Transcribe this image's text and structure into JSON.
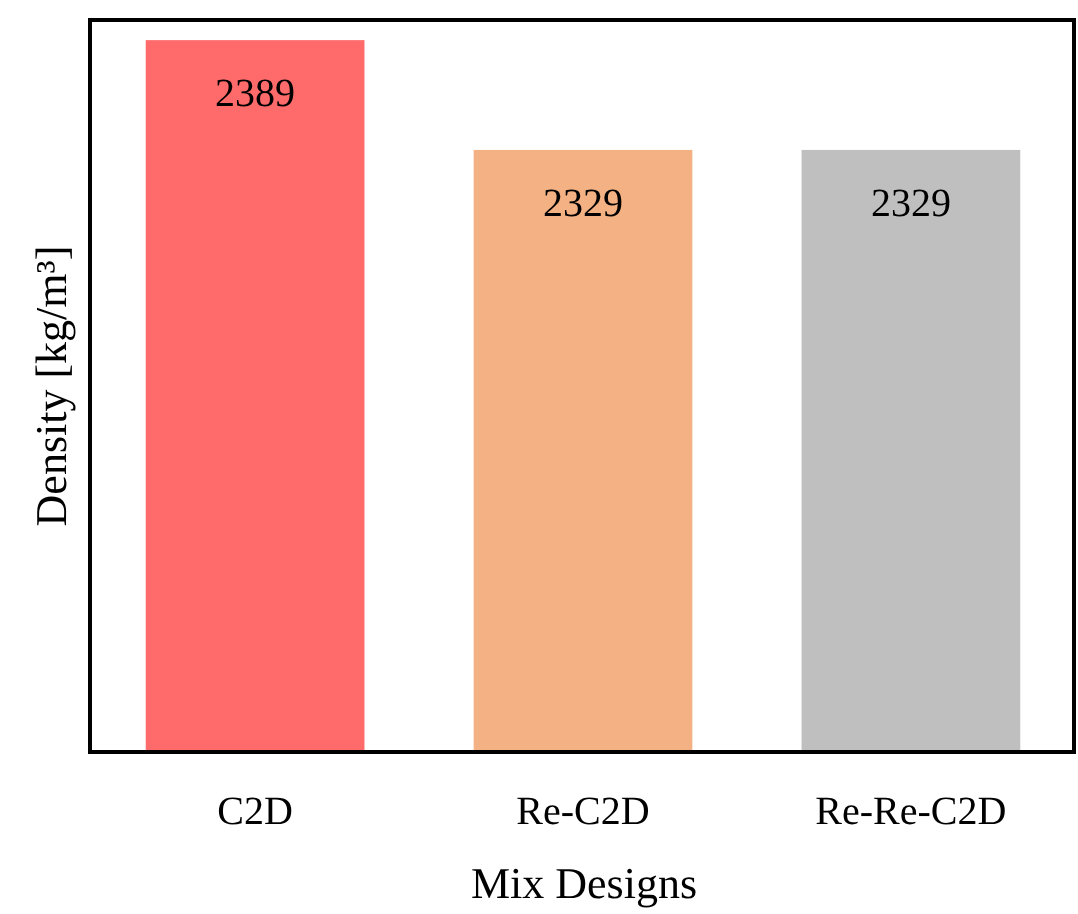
{
  "chart_data": {
    "type": "bar",
    "xlabel": "Mix Designs",
    "ylabel": "Density [kg/m³]",
    "categories": [
      "C2D",
      "Re-C2D",
      "Re-Re-C2D"
    ],
    "values": [
      2389,
      2329,
      2329
    ],
    "colors": [
      "#ff6b6b",
      "#f4b183",
      "#bfbfbf"
    ],
    "ylim": [
      2000,
      2400
    ],
    "data_labels": true,
    "tick_labels": "x"
  }
}
